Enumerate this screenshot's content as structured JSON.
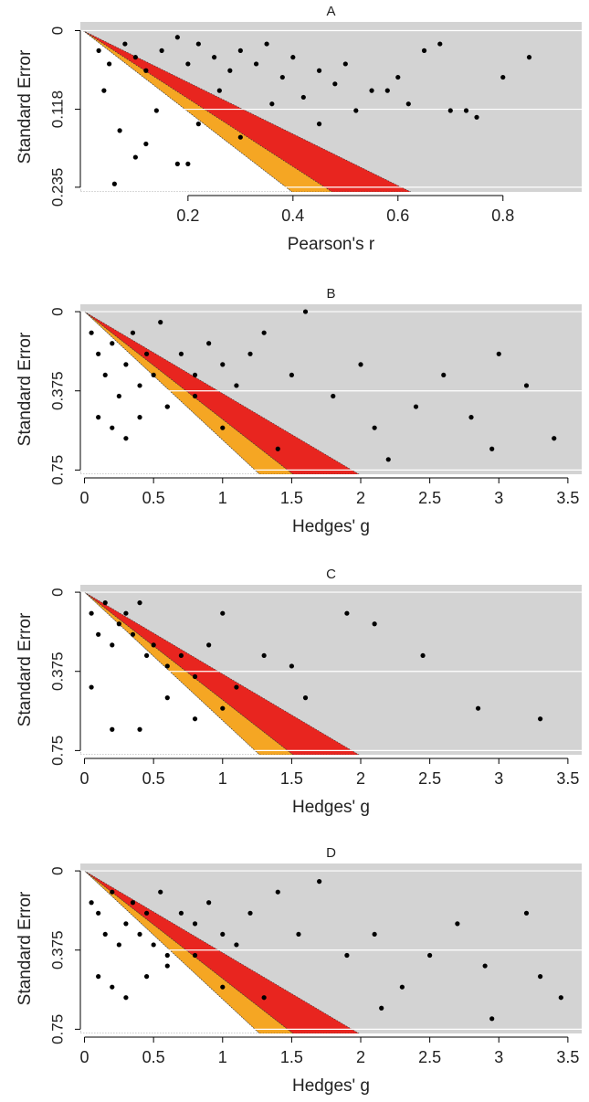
{
  "chart_data": [
    {
      "type": "scatter",
      "title": "A",
      "x_label": "Pearson's r",
      "y_label": "Standard Error",
      "color": "#000000",
      "background": "#d3d3d3",
      "grid": true,
      "y_reversed": true,
      "xlim": [
        -0.005,
        0.95
      ],
      "ylim": [
        -0.013,
        0.242
      ],
      "xticks": [
        0.2,
        0.4,
        0.6,
        0.8
      ],
      "yticks": [
        0,
        0.118,
        0.235
      ],
      "contours": [
        {
          "z": 1.645,
          "color": "#ffffff"
        },
        {
          "z": 1.96,
          "color": "#f5a623"
        },
        {
          "z": 2.58,
          "color": "#e8251f"
        }
      ],
      "x": [
        0.03,
        0.05,
        0.08,
        0.1,
        0.12,
        0.15,
        0.18,
        0.2,
        0.22,
        0.25,
        0.28,
        0.3,
        0.33,
        0.35,
        0.38,
        0.4,
        0.42,
        0.45,
        0.48,
        0.5,
        0.52,
        0.55,
        0.6,
        0.62,
        0.65,
        0.68,
        0.7,
        0.75,
        0.8,
        0.85,
        0.04,
        0.07,
        0.1,
        0.14,
        0.18,
        0.22,
        0.26,
        0.06,
        0.12,
        0.2,
        0.3,
        0.36,
        0.45,
        0.58,
        0.73
      ],
      "values": [
        0.03,
        0.05,
        0.02,
        0.04,
        0.06,
        0.03,
        0.01,
        0.05,
        0.02,
        0.04,
        0.06,
        0.03,
        0.05,
        0.02,
        0.07,
        0.04,
        0.1,
        0.06,
        0.08,
        0.05,
        0.12,
        0.09,
        0.07,
        0.11,
        0.03,
        0.02,
        0.12,
        0.13,
        0.07,
        0.04,
        0.09,
        0.15,
        0.19,
        0.12,
        0.2,
        0.14,
        0.09,
        0.23,
        0.17,
        0.2,
        0.16,
        0.11,
        0.14,
        0.09,
        0.12
      ]
    },
    {
      "type": "scatter",
      "title": "B",
      "x_label": "Hedges' g",
      "y_label": "Standard Error",
      "color": "#000000",
      "background": "#d3d3d3",
      "grid": true,
      "y_reversed": true,
      "xlim": [
        -0.03,
        3.6
      ],
      "ylim": [
        -0.035,
        0.77
      ],
      "xticks": [
        0,
        0.5,
        1,
        1.5,
        2,
        2.5,
        3,
        3.5
      ],
      "yticks": [
        0,
        0.375,
        0.75
      ],
      "contours": [
        {
          "z": 1.645,
          "color": "#ffffff"
        },
        {
          "z": 1.96,
          "color": "#f5a623"
        },
        {
          "z": 2.58,
          "color": "#e8251f"
        }
      ],
      "x": [
        0.05,
        0.1,
        0.15,
        0.2,
        0.25,
        0.3,
        0.35,
        0.4,
        0.45,
        0.5,
        0.55,
        0.6,
        0.7,
        0.8,
        0.9,
        1.0,
        1.1,
        1.2,
        1.3,
        1.5,
        1.6,
        1.8,
        2.0,
        2.2,
        2.4,
        2.6,
        2.8,
        3.0,
        3.2,
        3.4,
        0.1,
        0.2,
        0.3,
        0.4,
        0.6,
        0.8,
        1.0,
        1.4,
        2.1,
        2.95
      ],
      "values": [
        0.1,
        0.2,
        0.3,
        0.15,
        0.4,
        0.25,
        0.1,
        0.35,
        0.2,
        0.3,
        0.05,
        0.45,
        0.2,
        0.3,
        0.15,
        0.25,
        0.35,
        0.2,
        0.1,
        0.3,
        0.0,
        0.4,
        0.25,
        0.7,
        0.45,
        0.3,
        0.5,
        0.2,
        0.35,
        0.6,
        0.5,
        0.55,
        0.6,
        0.5,
        0.45,
        0.4,
        0.55,
        0.65,
        0.55,
        0.65
      ]
    },
    {
      "type": "scatter",
      "title": "C",
      "x_label": "Hedges' g",
      "y_label": "Standard Error",
      "color": "#000000",
      "background": "#d3d3d3",
      "grid": true,
      "y_reversed": true,
      "xlim": [
        -0.03,
        3.6
      ],
      "ylim": [
        -0.035,
        0.77
      ],
      "xticks": [
        0,
        0.5,
        1,
        1.5,
        2,
        2.5,
        3,
        3.5
      ],
      "yticks": [
        0,
        0.375,
        0.75
      ],
      "contours": [
        {
          "z": 1.645,
          "color": "#ffffff"
        },
        {
          "z": 1.96,
          "color": "#f5a623"
        },
        {
          "z": 2.58,
          "color": "#e8251f"
        }
      ],
      "x": [
        0.05,
        0.1,
        0.15,
        0.2,
        0.25,
        0.3,
        0.35,
        0.4,
        0.45,
        0.5,
        0.6,
        0.7,
        0.8,
        0.9,
        1.0,
        1.1,
        1.3,
        1.5,
        1.6,
        1.9,
        2.1,
        2.45,
        2.85,
        3.3,
        0.05,
        0.2,
        0.4,
        0.6,
        0.8,
        1.0
      ],
      "values": [
        0.1,
        0.2,
        0.05,
        0.25,
        0.15,
        0.1,
        0.2,
        0.05,
        0.3,
        0.25,
        0.35,
        0.3,
        0.4,
        0.25,
        0.1,
        0.45,
        0.3,
        0.35,
        0.5,
        0.1,
        0.15,
        0.3,
        0.55,
        0.6,
        0.45,
        0.65,
        0.65,
        0.5,
        0.6,
        0.55
      ]
    },
    {
      "type": "scatter",
      "title": "D",
      "x_label": "Hedges' g",
      "y_label": "Standard Error",
      "color": "#000000",
      "background": "#d3d3d3",
      "grid": true,
      "y_reversed": true,
      "xlim": [
        -0.03,
        3.6
      ],
      "ylim": [
        -0.035,
        0.77
      ],
      "xticks": [
        0,
        0.5,
        1,
        1.5,
        2,
        2.5,
        3,
        3.5
      ],
      "yticks": [
        0,
        0.375,
        0.75
      ],
      "contours": [
        {
          "z": 1.645,
          "color": "#ffffff"
        },
        {
          "z": 1.96,
          "color": "#f5a623"
        },
        {
          "z": 2.58,
          "color": "#e8251f"
        }
      ],
      "x": [
        0.05,
        0.1,
        0.15,
        0.2,
        0.25,
        0.3,
        0.35,
        0.4,
        0.45,
        0.5,
        0.55,
        0.6,
        0.7,
        0.8,
        0.9,
        1.0,
        1.1,
        1.2,
        1.4,
        1.55,
        1.7,
        1.9,
        2.1,
        2.3,
        2.5,
        2.7,
        2.9,
        3.2,
        3.3,
        3.45,
        0.1,
        0.2,
        0.3,
        0.45,
        0.6,
        0.8,
        1.0,
        1.3,
        2.15,
        2.95
      ],
      "values": [
        0.15,
        0.2,
        0.3,
        0.1,
        0.35,
        0.25,
        0.15,
        0.3,
        0.2,
        0.35,
        0.1,
        0.4,
        0.2,
        0.25,
        0.15,
        0.3,
        0.35,
        0.2,
        0.1,
        0.3,
        0.05,
        0.4,
        0.3,
        0.55,
        0.4,
        0.25,
        0.45,
        0.2,
        0.5,
        0.6,
        0.5,
        0.55,
        0.6,
        0.5,
        0.45,
        0.4,
        0.55,
        0.6,
        0.65,
        0.7
      ]
    }
  ]
}
